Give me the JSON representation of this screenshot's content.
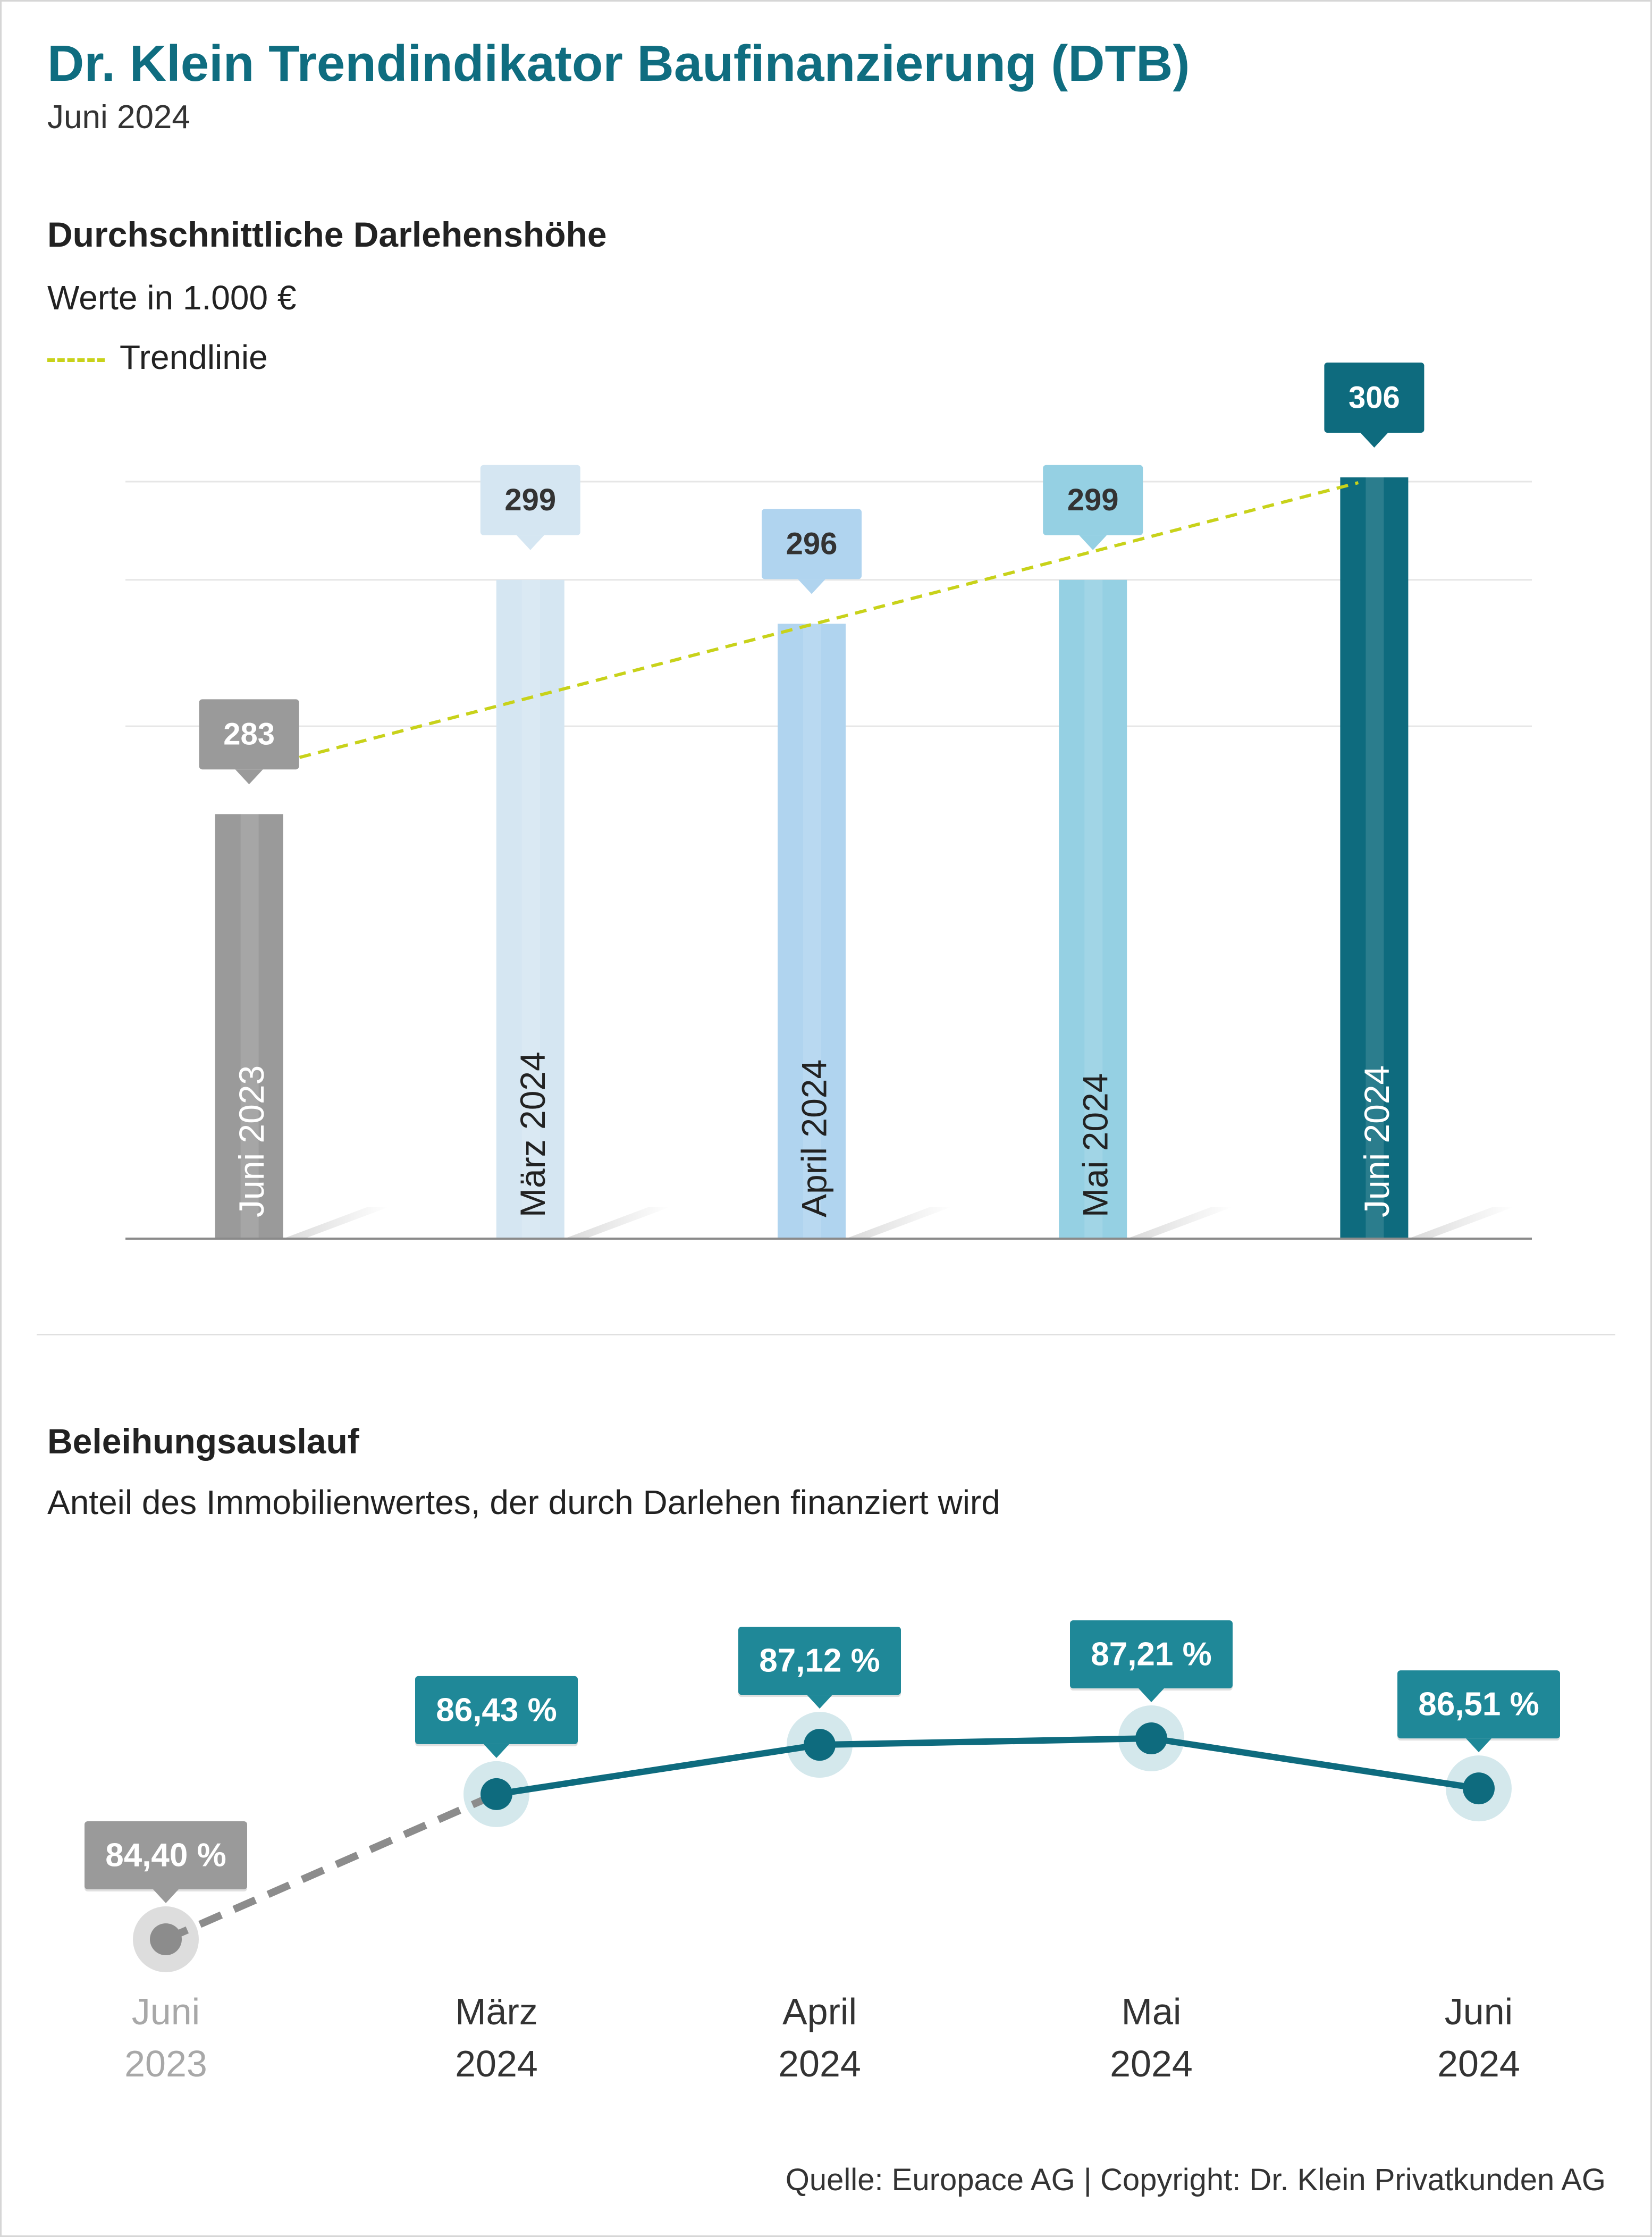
{
  "header": {
    "title": "Dr. Klein Trendindikator Baufinanzierung (DTB)",
    "subtitle": "Juni 2024"
  },
  "section1": {
    "title": "Durchschnittliche Darlehenshöhe",
    "subtitle": "Werte in 1.000 €",
    "legend_label": "Trendlinie"
  },
  "section2": {
    "title": "Beleihungsauslauf",
    "subtitle": "Anteil des Immobilienwertes, der durch Darlehen finanziert wird"
  },
  "footer": {
    "source": "Quelle: Europace AG | Copyright: Dr. Klein Privatkunden AG"
  },
  "chart_data": [
    {
      "type": "bar",
      "title": "Durchschnittliche Darlehenshöhe",
      "subtitle": "Werte in 1.000 €",
      "categories": [
        "Juni 2023",
        "März 2024",
        "April 2024",
        "Mai 2024",
        "Juni 2024"
      ],
      "values": [
        283,
        299,
        296,
        299,
        306
      ],
      "value_labels": [
        "283",
        "299",
        "296",
        "299",
        "306"
      ],
      "bar_colors": [
        "#9a9a9a",
        "#d5e6f2",
        "#b0d4ef",
        "#95d0e3",
        "#0e6b7e"
      ],
      "label_colors": [
        "#9a9a9a",
        "#d5e6f2",
        "#b0d4ef",
        "#95d0e3",
        "#0e6b7e"
      ],
      "label_text_colors": [
        "#ffffff",
        "#333333",
        "#333333",
        "#333333",
        "#ffffff"
      ],
      "trendline": {
        "name": "Trendlinie",
        "start": 284,
        "end": 306,
        "color": "#c8d21a",
        "style": "dashed"
      },
      "ylim": [
        254,
        306
      ],
      "gridlines": [
        289,
        299
      ],
      "grid": true,
      "legend": "top-left"
    },
    {
      "type": "line",
      "title": "Beleihungsauslauf",
      "subtitle": "Anteil des Immobilienwertes, der durch Darlehen finanziert wird",
      "categories": [
        [
          "Juni",
          "2023"
        ],
        [
          "März",
          "2024"
        ],
        [
          "April",
          "2024"
        ],
        [
          "Mai",
          "2024"
        ],
        [
          "Juni",
          "2024"
        ]
      ],
      "values": [
        84.4,
        86.43,
        87.12,
        87.21,
        86.51
      ],
      "value_labels": [
        "84,40 %",
        "86,43 %",
        "87,12 %",
        "87,21 %",
        "86,51 %"
      ],
      "first_segment_style": "dashed",
      "colors": {
        "line": "#0e6b7e",
        "point": "#0e6b7e",
        "label": "#1f8898",
        "past": "#8c8c8c",
        "past_label": "#9a9a9a",
        "past_axis_text": "#a8a8a8"
      },
      "ylim": [
        84.0,
        87.5
      ]
    }
  ]
}
